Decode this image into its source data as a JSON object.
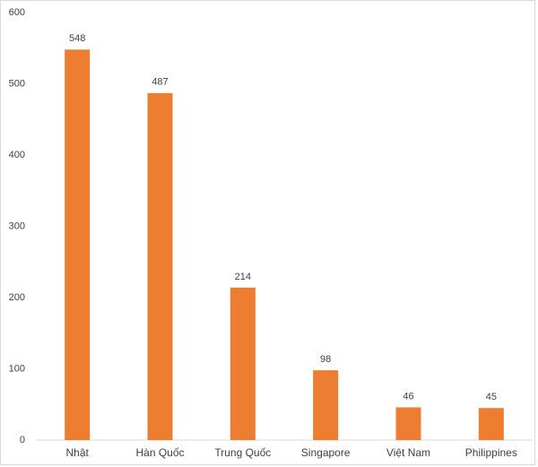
{
  "chart_data": {
    "type": "bar",
    "categories": [
      "Nhật",
      "Hàn Quốc",
      "Trung Quốc",
      "Singapore",
      "Việt Nam",
      "Philippines"
    ],
    "values": [
      548,
      487,
      214,
      98,
      46,
      45
    ],
    "color": "#ed7d31",
    "ylim": [
      0,
      600
    ],
    "yticks": [
      0,
      100,
      200,
      300,
      400,
      500,
      600
    ],
    "grid": false
  }
}
